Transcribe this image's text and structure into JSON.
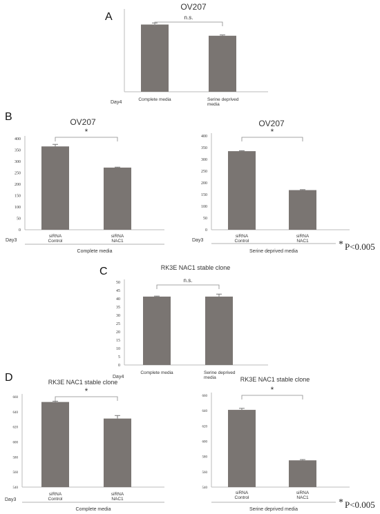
{
  "panels": {
    "A": "A",
    "B": "B",
    "C": "C",
    "D": "D"
  },
  "pvalue": {
    "star": "*",
    "text": "P<0.005"
  },
  "chart_data": [
    {
      "id": "A",
      "type": "bar",
      "title": "OV207",
      "day_label": "Day4",
      "categories": [
        "Complete media",
        "Serine deprived media"
      ],
      "values": [
        0.84,
        0.7
      ],
      "errors": [
        0.02,
        0.01
      ],
      "ylim": [
        0,
        1
      ],
      "show_ticks": false,
      "significance": "n.s.",
      "group_label": ""
    },
    {
      "id": "B1",
      "type": "bar",
      "title": "OV207",
      "day_label": "Day3",
      "categories": [
        "siRNA Control",
        "siRNA NAC1"
      ],
      "values": [
        366,
        273
      ],
      "errors": [
        9,
        2
      ],
      "ylim": [
        0,
        400
      ],
      "yticks": [
        0,
        50,
        100,
        150,
        200,
        250,
        300,
        350,
        400
      ],
      "significance": "*",
      "group_label": "Complete media"
    },
    {
      "id": "B2",
      "type": "bar",
      "title": "OV207",
      "day_label": "Day3",
      "categories": [
        "siRNA Control",
        "siRNA NAC1"
      ],
      "values": [
        335,
        169
      ],
      "errors": [
        2,
        2
      ],
      "ylim": [
        0,
        400
      ],
      "yticks": [
        0,
        50,
        100,
        150,
        200,
        250,
        300,
        350,
        400
      ],
      "significance": "*",
      "group_label": "Serine deprived media"
    },
    {
      "id": "C",
      "type": "bar",
      "title": "RK3E NAC1 stable clone",
      "day_label": "Day4",
      "categories": [
        "Complete media",
        "Serine deprived media"
      ],
      "values": [
        41.3,
        41.3
      ],
      "errors": [
        0.3,
        1.5
      ],
      "ylim": [
        0,
        50
      ],
      "yticks": [
        0,
        5,
        10,
        15,
        20,
        25,
        30,
        35,
        40,
        45,
        50
      ],
      "significance": "n.s.",
      "group_label": ""
    },
    {
      "id": "D1",
      "type": "bar",
      "title": "RK3E NAC1 stable clone",
      "day_label": "Day3",
      "categories": [
        "siRNA Control",
        "siRNA NAC1"
      ],
      "values": [
        653,
        631
      ],
      "errors": [
        1,
        4
      ],
      "ylim": [
        540,
        660
      ],
      "yticks": [
        540,
        560,
        580,
        600,
        620,
        640,
        660
      ],
      "significance": "*",
      "group_label": "Complete media"
    },
    {
      "id": "D2",
      "type": "bar",
      "title": "RK3E NAC1 stable clone",
      "day_label": "Day3",
      "categories": [
        "siRNA Control",
        "siRNA NAC1"
      ],
      "values": [
        641,
        575
      ],
      "errors": [
        2,
        1
      ],
      "ylim": [
        540,
        660
      ],
      "yticks": [
        540,
        560,
        580,
        600,
        620,
        640,
        660
      ],
      "significance": "*",
      "group_label": "Serine deprived media"
    }
  ]
}
